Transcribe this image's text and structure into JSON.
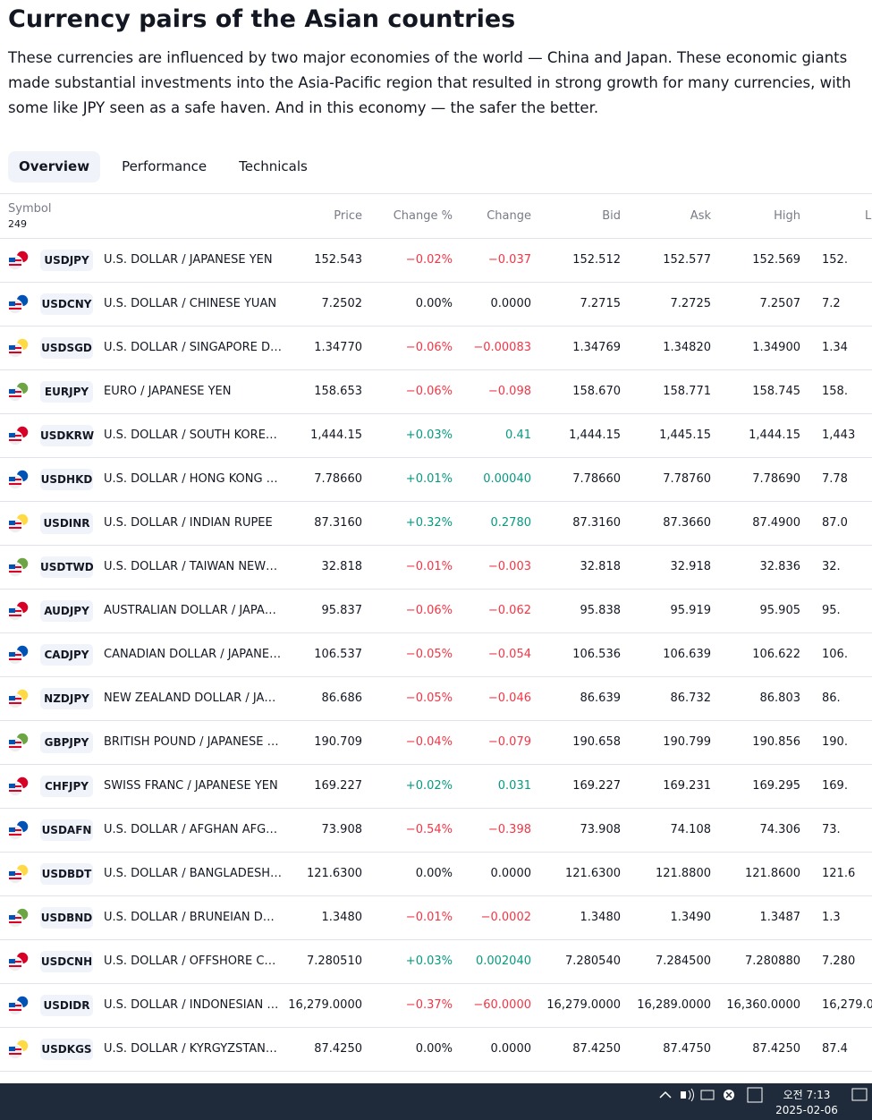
{
  "header": {
    "title": "Currency pairs of the Asian countries",
    "description": "These currencies are influenced by two major economies of the world — China and Japan. These economic giants made substantial investments into the Asia-Pacific region that resulted in strong growth for many currencies, with some like JPY seen as a safe haven. And in this economy — the safer the better."
  },
  "tabs": [
    "Overview",
    "Performance",
    "Technicals"
  ],
  "table": {
    "symbol_header": "Symbol",
    "count": "249",
    "columns": [
      "Price",
      "Change %",
      "Change",
      "Bid",
      "Ask",
      "High",
      "L"
    ],
    "rows": [
      [
        "USDJPY",
        "U.S. DOLLAR / JAPANESE YEN",
        "152.543",
        "−0.02%",
        "−0.037",
        "152.512",
        "152.577",
        "152.569",
        "152."
      ],
      [
        "USDCNY",
        "U.S. DOLLAR / CHINESE YUAN",
        "7.2502",
        "0.00%",
        "0.0000",
        "7.2715",
        "7.2725",
        "7.2507",
        "7.2"
      ],
      [
        "USDSGD",
        "U.S. DOLLAR / SINGAPORE D…",
        "1.34770",
        "−0.06%",
        "−0.00083",
        "1.34769",
        "1.34820",
        "1.34900",
        "1.34"
      ],
      [
        "EURJPY",
        "EURO / JAPANESE YEN",
        "158.653",
        "−0.06%",
        "−0.098",
        "158.670",
        "158.771",
        "158.745",
        "158."
      ],
      [
        "USDKRW",
        "U.S. DOLLAR / SOUTH KORE…",
        "1,444.15",
        "+0.03%",
        "0.41",
        "1,444.15",
        "1,445.15",
        "1,444.15",
        "1,443"
      ],
      [
        "USDHKD",
        "U.S. DOLLAR / HONG KONG …",
        "7.78660",
        "+0.01%",
        "0.00040",
        "7.78660",
        "7.78760",
        "7.78690",
        "7.78"
      ],
      [
        "USDINR",
        "U.S. DOLLAR / INDIAN RUPEE",
        "87.3160",
        "+0.32%",
        "0.2780",
        "87.3160",
        "87.3660",
        "87.4900",
        "87.0"
      ],
      [
        "USDTWD",
        "U.S. DOLLAR / TAIWAN NEW…",
        "32.818",
        "−0.01%",
        "−0.003",
        "32.818",
        "32.918",
        "32.836",
        "32."
      ],
      [
        "AUDJPY",
        "AUSTRALIAN DOLLAR / JAPA…",
        "95.837",
        "−0.06%",
        "−0.062",
        "95.838",
        "95.919",
        "95.905",
        "95."
      ],
      [
        "CADJPY",
        "CANADIAN DOLLAR / JAPANE…",
        "106.537",
        "−0.05%",
        "−0.054",
        "106.536",
        "106.639",
        "106.622",
        "106."
      ],
      [
        "NZDJPY",
        "NEW ZEALAND DOLLAR / JA…",
        "86.686",
        "−0.05%",
        "−0.046",
        "86.639",
        "86.732",
        "86.803",
        "86."
      ],
      [
        "GBPJPY",
        "BRITISH POUND / JAPANESE …",
        "190.709",
        "−0.04%",
        "−0.079",
        "190.658",
        "190.799",
        "190.856",
        "190."
      ],
      [
        "CHFJPY",
        "SWISS FRANC / JAPANESE YEN",
        "169.227",
        "+0.02%",
        "0.031",
        "169.227",
        "169.231",
        "169.295",
        "169."
      ],
      [
        "USDAFN",
        "U.S. DOLLAR / AFGHAN AFG…",
        "73.908",
        "−0.54%",
        "−0.398",
        "73.908",
        "74.108",
        "74.306",
        "73."
      ],
      [
        "USDBDT",
        "U.S. DOLLAR / BANGLADESH…",
        "121.6300",
        "0.00%",
        "0.0000",
        "121.6300",
        "121.8800",
        "121.8600",
        "121.6"
      ],
      [
        "USDBND",
        "U.S. DOLLAR / BRUNEIAN D…",
        "1.3480",
        "−0.01%",
        "−0.0002",
        "1.3480",
        "1.3490",
        "1.3487",
        "1.3"
      ],
      [
        "USDCNH",
        "U.S. DOLLAR / OFFSHORE C…",
        "7.280510",
        "+0.03%",
        "0.002040",
        "7.280540",
        "7.284500",
        "7.280880",
        "7.280"
      ],
      [
        "USDIDR",
        "U.S. DOLLAR / INDONESIAN …",
        "16,279.0000",
        "−0.37%",
        "−60.0000",
        "16,279.0000",
        "16,289.0000",
        "16,360.0000",
        "16,279.0"
      ],
      [
        "USDKGS",
        "U.S. DOLLAR / KYRGYZSTAN…",
        "87.4250",
        "0.00%",
        "0.0000",
        "87.4250",
        "87.4750",
        "87.4250",
        "87.4"
      ]
    ]
  },
  "taskbar": {
    "time": "오전 7:13",
    "date": "2025-02-06"
  }
}
